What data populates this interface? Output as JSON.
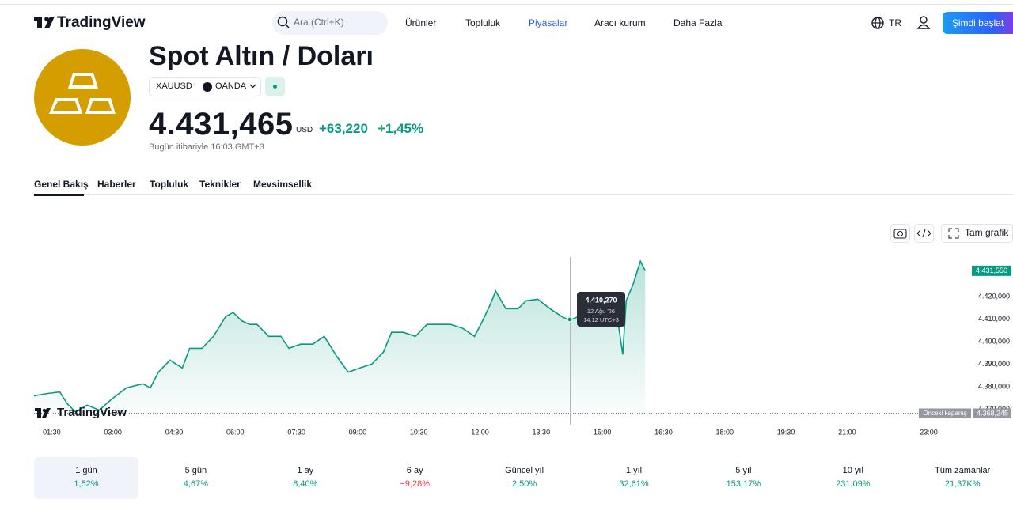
{
  "header": {
    "logo": "TradingView",
    "search": "Ara (Ctrl+K)",
    "nav": [
      "Ürünler",
      "Topluluk",
      "Piyasalar",
      "Aracı kurum",
      "Daha Fazla"
    ],
    "language": "TR",
    "cta": "Şimdi başlat"
  },
  "symbol": {
    "title": "Spot Altın / Doları",
    "ticker": "XAUUSD",
    "exchange": "OANDA",
    "price": "4.431,465",
    "currency": "USD",
    "change": "+63,220",
    "change_percent": "+1,45%",
    "timestamp": "Bugün itibariyle 16:03 GMT+3"
  },
  "tabs": [
    "Genel Bakış",
    "Haberler",
    "Topluluk",
    "Teknikler",
    "Mevsimsellik"
  ],
  "toolbar": {
    "full_chart": "Tam grafik"
  },
  "chart_data": {
    "type": "area",
    "color": "#089981",
    "grid": false,
    "watermark": "TradingView",
    "x": [
      64,
      84,
      102,
      113,
      125,
      142,
      160,
      177,
      200,
      224,
      235,
      247,
      264,
      282,
      293,
      311,
      328,
      346,
      357,
      369,
      381,
      392,
      409,
      427,
      439,
      456,
      474,
      491,
      509,
      526,
      543,
      561,
      578,
      590,
      607,
      625,
      642,
      660,
      677,
      695,
      712,
      724,
      735,
      743,
      758,
      776,
      788,
      805,
      823,
      840,
      852,
      869,
      887,
      904,
      921,
      930,
      935,
      945,
      956,
      963
    ],
    "values": [
      4376.0,
      4377.0,
      4377.7,
      4372.4,
      4368.8,
      4371.8,
      4369.6,
      4374.2,
      4379.5,
      4381.3,
      4379.5,
      4386.5,
      4391.8,
      4388.3,
      4397.1,
      4397.1,
      4402.4,
      4411.2,
      4413.0,
      4409.4,
      4407.7,
      4407.7,
      4402.4,
      4402.4,
      4397.1,
      4398.9,
      4398.9,
      4402.4,
      4393.6,
      4386.5,
      4388.3,
      4390.1,
      4395.4,
      4404.2,
      4404.2,
      4402.4,
      4407.7,
      4407.7,
      4407.7,
      4405.9,
      4402.4,
      4409.4,
      4416.5,
      4422.5,
      4414.7,
      4414.7,
      4418.2,
      4418.9,
      4414.7,
      4411.2,
      4409.4,
      4411.9,
      4413.0,
      4413.0,
      4413.0,
      4394.3,
      4418.2,
      4425.3,
      4435.8,
      4431.55
    ],
    "xlim": [
      64,
      1440
    ],
    "xticks": [
      {
        "value": 90,
        "label": "01:30"
      },
      {
        "value": 180,
        "label": "03:00"
      },
      {
        "value": 270,
        "label": "04:30"
      },
      {
        "value": 360,
        "label": "06:00"
      },
      {
        "value": 450,
        "label": "07:30"
      },
      {
        "value": 540,
        "label": "09:00"
      },
      {
        "value": 630,
        "label": "10:30"
      },
      {
        "value": 720,
        "label": "12:00"
      },
      {
        "value": 810,
        "label": "13:30"
      },
      {
        "value": 900,
        "label": "15:00"
      },
      {
        "value": 990,
        "label": "16:30"
      },
      {
        "value": 1080,
        "label": "18:00"
      },
      {
        "value": 1170,
        "label": "19:30"
      },
      {
        "value": 1260,
        "label": "21:00"
      },
      {
        "value": 1380,
        "label": "23:00"
      }
    ],
    "ylim": [
      4367,
      4438
    ],
    "yticks": [
      {
        "value": 4370,
        "label": "4.370,000"
      },
      {
        "value": 4380,
        "label": "4.380,000"
      },
      {
        "value": 4390,
        "label": "4.390,000"
      },
      {
        "value": 4400,
        "label": "4.400,000"
      },
      {
        "value": 4410,
        "label": "4.410,000"
      },
      {
        "value": 4420,
        "label": "4.420,000"
      }
    ],
    "last_price": {
      "value": 4431.55,
      "label": "4.431,550"
    },
    "previous_close": {
      "name": "Önceki kapanış",
      "value": 4368.245,
      "label": "4.368,245"
    },
    "tooltip": {
      "price": "4.410,270",
      "date": "12 Ağu '26",
      "time": "14:12 UTC+3"
    }
  },
  "periods": [
    {
      "label": "1 gün",
      "value": "1,52%",
      "color": "#089981"
    },
    {
      "label": "5 gün",
      "value": "4,67%",
      "color": "#089981"
    },
    {
      "label": "1 ay",
      "value": "8,40%",
      "color": "#089981"
    },
    {
      "label": "6 ay",
      "value": "−9,28%",
      "color": "#f23645"
    },
    {
      "label": "Güncel yıl",
      "value": "2,50%",
      "color": "#089981"
    },
    {
      "label": "1 yıl",
      "value": "32,61%",
      "color": "#089981"
    },
    {
      "label": "5 yıl",
      "value": "153,17%",
      "color": "#089981"
    },
    {
      "label": "10 yıl",
      "value": "231,09%",
      "color": "#089981"
    },
    {
      "label": "Tüm zamanlar",
      "value": "21,37K%",
      "color": "#089981"
    }
  ]
}
